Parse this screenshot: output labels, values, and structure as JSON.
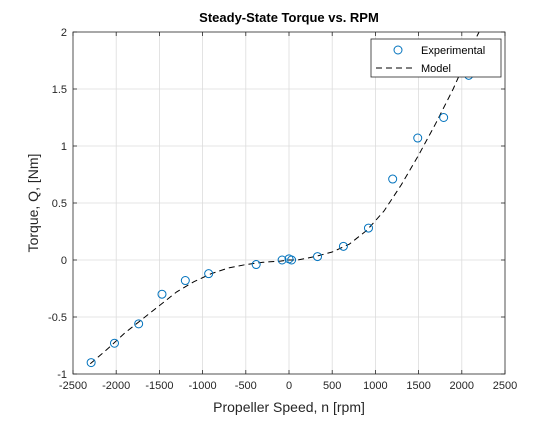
{
  "chart_data": {
    "type": "scatter",
    "title": "Steady-State Torque vs. RPM",
    "xlabel": "Propeller Speed, n [rpm]",
    "ylabel": "Torque, Q, [Nm]",
    "xlim": [
      -2500,
      2500
    ],
    "ylim": [
      -1,
      2
    ],
    "xticks": [
      -2500,
      -2000,
      -1500,
      -1000,
      -500,
      0,
      500,
      1000,
      1500,
      2000,
      2500
    ],
    "yticks": [
      -1,
      -0.5,
      0,
      0.5,
      1,
      1.5,
      2
    ],
    "grid": true,
    "legend_position": "top-right",
    "series": [
      {
        "name": "Experimental",
        "type": "scatter",
        "marker": "open-circle",
        "color": "#0072BD",
        "x": [
          -2290,
          -2020,
          -1740,
          -1470,
          -1200,
          -930,
          -380,
          -80,
          0,
          30,
          330,
          630,
          920,
          1200,
          1490,
          1790,
          2080,
          2370
        ],
        "y": [
          -0.9,
          -0.73,
          -0.56,
          -0.3,
          -0.18,
          -0.12,
          -0.04,
          0.0,
          0.01,
          0.0,
          0.03,
          0.12,
          0.28,
          0.71,
          1.07,
          1.25,
          1.62,
          1.72
        ]
      },
      {
        "name": "Model",
        "type": "line",
        "style": "dashed",
        "color": "#000000",
        "x": [
          -2300,
          -2100,
          -1900,
          -1700,
          -1500,
          -1300,
          -1100,
          -900,
          -700,
          -500,
          -300,
          -100,
          0,
          100,
          300,
          500,
          700,
          900,
          1100,
          1300,
          1500,
          1700,
          1900,
          2000,
          2100,
          2200
        ],
        "y": [
          -0.91,
          -0.78,
          -0.64,
          -0.52,
          -0.4,
          -0.28,
          -0.19,
          -0.12,
          -0.07,
          -0.04,
          -0.02,
          -0.01,
          0.0,
          0.0,
          0.03,
          0.07,
          0.14,
          0.26,
          0.43,
          0.66,
          0.92,
          1.2,
          1.5,
          1.67,
          1.85,
          2.0
        ]
      }
    ]
  }
}
